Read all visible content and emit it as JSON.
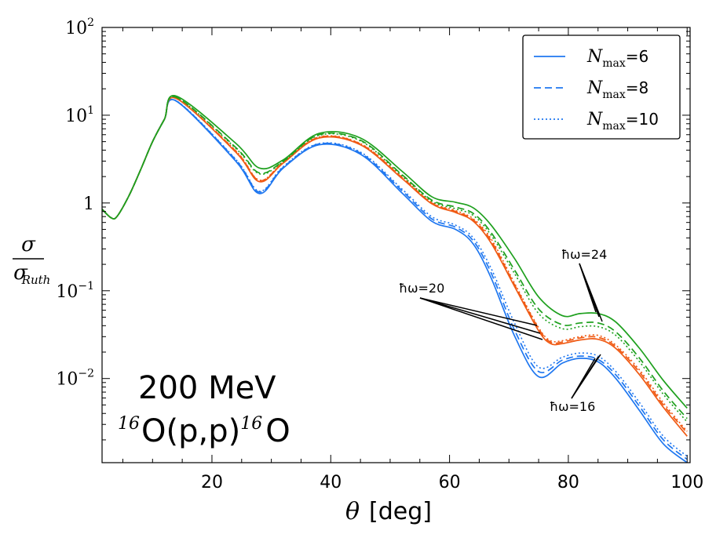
{
  "chart_data": {
    "type": "line",
    "title": "",
    "xlabel_var": "θ",
    "xlabel_unit": "[deg]",
    "ylabel_num": "σ",
    "ylabel_den": "σ",
    "ylabel_den_sub": "Ruth",
    "xlim": [
      1.5,
      100.5
    ],
    "ylim": [
      0.0011,
      100
    ],
    "yscale": "log",
    "x_ticks": [
      20,
      40,
      60,
      80,
      100
    ],
    "x_tick_labels": [
      "20",
      "40",
      "60",
      "80",
      "100"
    ],
    "y_ticks": [
      {
        "value": 100,
        "base": "10",
        "exp": "2"
      },
      {
        "value": 10,
        "base": "10",
        "exp": "1"
      },
      {
        "value": 1,
        "base": "1",
        "exp": ""
      },
      {
        "value": 0.1,
        "base": "10",
        "exp": "−1"
      },
      {
        "value": 0.01,
        "base": "10",
        "exp": "−2"
      }
    ],
    "colors": {
      "blue": "#1f77f0",
      "orange": "#f05a14",
      "green": "#1ea01e"
    },
    "series": [
      {
        "name": "ħω=16, Nmax=6",
        "color": "blue",
        "style": "solid",
        "y_at": {
          "14": 14.5,
          "24": 3.0,
          "28": 1.28,
          "32": 2.5,
          "38": 4.6,
          "45": 3.6,
          "52": 1.3,
          "57": 0.62,
          "61": 0.5,
          "64": 0.34,
          "67": 0.14,
          "71": 0.03,
          "75": 0.0105,
          "79": 0.015,
          "82": 0.017,
          "85": 0.0155,
          "88": 0.01,
          "92": 0.0043,
          "96": 0.0018,
          "100": 0.0011
        }
      },
      {
        "name": "ħω=16, Nmax=8",
        "color": "blue",
        "style": "dashed",
        "y_at": {
          "14": 14.5,
          "24": 3.1,
          "28": 1.33,
          "32": 2.55,
          "38": 4.7,
          "45": 3.7,
          "52": 1.38,
          "57": 0.66,
          "61": 0.53,
          "64": 0.37,
          "67": 0.16,
          "71": 0.035,
          "75": 0.012,
          "79": 0.0162,
          "82": 0.018,
          "85": 0.0165,
          "88": 0.011,
          "92": 0.0048,
          "96": 0.002,
          "100": 0.0012
        }
      },
      {
        "name": "ħω=16, Nmax=10",
        "color": "blue",
        "style": "dotted",
        "y_at": {
          "14": 14.6,
          "24": 3.15,
          "28": 1.36,
          "32": 2.6,
          "38": 4.75,
          "45": 3.8,
          "52": 1.44,
          "57": 0.7,
          "61": 0.56,
          "64": 0.4,
          "67": 0.18,
          "71": 0.042,
          "75": 0.0135,
          "79": 0.0175,
          "82": 0.0195,
          "85": 0.018,
          "88": 0.012,
          "92": 0.0053,
          "96": 0.0022,
          "100": 0.0013
        }
      },
      {
        "name": "ħω=20, Nmax=6",
        "color": "orange",
        "style": "solid",
        "y_at": {
          "14": 15.5,
          "24": 3.8,
          "28": 1.75,
          "32": 2.85,
          "38": 5.5,
          "45": 4.6,
          "52": 1.9,
          "57": 0.98,
          "61": 0.78,
          "64": 0.62,
          "67": 0.35,
          "71": 0.11,
          "75": 0.035,
          "77": 0.025,
          "79": 0.025,
          "82": 0.0275,
          "85": 0.028,
          "88": 0.022,
          "92": 0.011,
          "96": 0.0047,
          "100": 0.0022
        }
      },
      {
        "name": "ħω=20, Nmax=8",
        "color": "orange",
        "style": "dashed",
        "y_at": {
          "14": 15.5,
          "24": 3.9,
          "28": 1.8,
          "32": 2.9,
          "38": 5.6,
          "45": 4.7,
          "52": 1.95,
          "57": 1.0,
          "61": 0.8,
          "64": 0.64,
          "67": 0.37,
          "71": 0.115,
          "75": 0.037,
          "77": 0.026,
          "79": 0.026,
          "82": 0.029,
          "85": 0.0295,
          "88": 0.023,
          "92": 0.0118,
          "96": 0.005,
          "100": 0.0024
        }
      },
      {
        "name": "ħω=20, Nmax=10",
        "color": "orange",
        "style": "dotted",
        "y_at": {
          "14": 15.6,
          "24": 3.95,
          "28": 1.82,
          "32": 2.92,
          "38": 5.65,
          "45": 4.75,
          "52": 2.0,
          "57": 1.02,
          "61": 0.82,
          "64": 0.66,
          "67": 0.39,
          "71": 0.12,
          "75": 0.038,
          "77": 0.027,
          "79": 0.027,
          "82": 0.03,
          "85": 0.031,
          "88": 0.024,
          "92": 0.0125,
          "96": 0.0053,
          "100": 0.0025
        }
      },
      {
        "name": "ħω=24, Nmax=6",
        "color": "green",
        "style": "solid",
        "y_at": {
          "14": 16.5,
          "24": 4.8,
          "28": 2.5,
          "32": 3.1,
          "38": 6.2,
          "45": 5.5,
          "52": 2.3,
          "57": 1.18,
          "61": 1.02,
          "64": 0.88,
          "67": 0.56,
          "71": 0.23,
          "75": 0.085,
          "79": 0.052,
          "82": 0.055,
          "85": 0.055,
          "88": 0.044,
          "92": 0.022,
          "96": 0.0095,
          "100": 0.0046
        }
      },
      {
        "name": "ħω=24, Nmax=8",
        "color": "green",
        "style": "dashed",
        "y_at": {
          "14": 16.0,
          "24": 4.3,
          "28": 2.2,
          "32": 3.0,
          "38": 6.0,
          "45": 5.2,
          "52": 2.1,
          "57": 1.08,
          "61": 0.9,
          "64": 0.76,
          "67": 0.46,
          "71": 0.17,
          "75": 0.062,
          "79": 0.041,
          "82": 0.043,
          "85": 0.043,
          "88": 0.034,
          "92": 0.017,
          "96": 0.0072,
          "100": 0.0035
        }
      },
      {
        "name": "ħω=24, Nmax=10",
        "color": "green",
        "style": "dotted",
        "y_at": {
          "14": 16.0,
          "24": 4.2,
          "28": 2.15,
          "32": 2.95,
          "38": 5.9,
          "45": 5.1,
          "52": 2.05,
          "57": 1.05,
          "61": 0.86,
          "64": 0.72,
          "67": 0.43,
          "71": 0.155,
          "75": 0.055,
          "79": 0.037,
          "82": 0.039,
          "85": 0.039,
          "88": 0.031,
          "92": 0.0155,
          "96": 0.0066,
          "100": 0.0032
        }
      }
    ],
    "common_start": {
      "1.5": 0.85,
      "3": 0.68,
      "4": 0.7,
      "6": 1.2,
      "8": 2.4,
      "10": 5.0,
      "12": 9.0
    },
    "legend": {
      "placement": "top-right",
      "entries": [
        {
          "symbol": "N",
          "sub": "max",
          "suffix": "=6",
          "style": "solid"
        },
        {
          "symbol": "N",
          "sub": "max",
          "suffix": "=8",
          "style": "dashed"
        },
        {
          "symbol": "N",
          "sub": "max",
          "suffix": "=10",
          "style": "dotted"
        }
      ],
      "color": "blue"
    },
    "annotations": {
      "hw20": "ħω=20",
      "hw24": "ħω=24",
      "hw16": "ħω=16",
      "energy": "200 MeV",
      "reaction_pre_sup": "16",
      "reaction_main": "O(p,p)",
      "reaction_mid_sup": "16",
      "reaction_end": "O"
    }
  }
}
